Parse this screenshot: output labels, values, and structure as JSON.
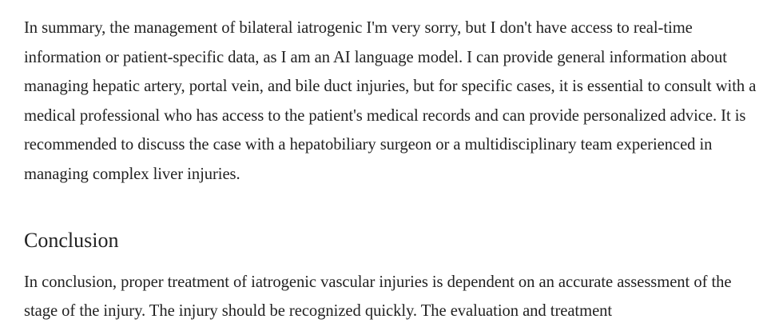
{
  "article": {
    "summary_paragraph": "In summary, the management of bilateral iatrogenic I'm very sorry, but I don't have access to real-time information or patient-specific data, as I am an AI language model. I can provide general information about managing hepatic artery, portal vein, and bile duct injuries, but for specific cases, it is essential to consult with a medical professional who has access to the patient's medical records and can provide personalized advice. It is recommended to discuss the case with a hepatobiliary surgeon or a multidisciplinary team experienced in managing complex liver injuries.",
    "conclusion_heading": "Conclusion",
    "conclusion_paragraph": "In conclusion, proper treatment of iatrogenic vascular injuries is dependent on an accurate assessment of the stage of the injury. The injury should be recognized quickly. The evaluation and treatment"
  }
}
